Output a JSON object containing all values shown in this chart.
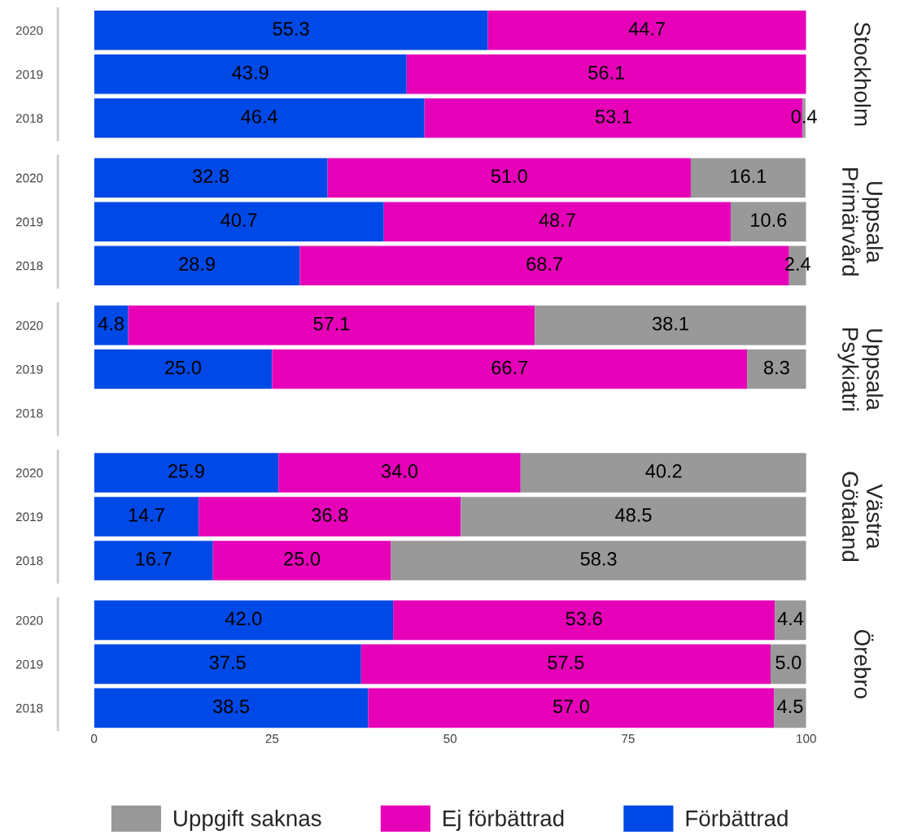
{
  "chart_data": [
    {
      "type": "bar",
      "orientation": "horizontal",
      "stacked": true,
      "ylabel": "Stockholm",
      "categories": [
        "2020",
        "2019",
        "2018"
      ],
      "xlim": [
        0,
        100
      ],
      "xticks": [
        0,
        25,
        50,
        75,
        100
      ],
      "tick_labels": "y",
      "grid": false,
      "series": [
        {
          "color": "#0049e6",
          "values": [
            55.3,
            43.9,
            46.4
          ],
          "value_labels": [
            "55.3",
            "43.9",
            "46.4"
          ]
        },
        {
          "color": "#e600b8",
          "values": [
            44.7,
            56.1,
            53.1
          ],
          "value_labels": [
            "44.7",
            "56.1",
            "53.1"
          ]
        },
        {
          "color": "#999999",
          "values": [
            null,
            null,
            0.4
          ],
          "value_labels": [
            null,
            null,
            "0.4"
          ]
        }
      ]
    },
    {
      "type": "bar",
      "orientation": "horizontal",
      "stacked": true,
      "ylabel": "Uppsala Primärvård",
      "categories": [
        "2020",
        "2019",
        "2018"
      ],
      "xlim": [
        0,
        100
      ],
      "xticks": [
        0,
        25,
        50,
        75,
        100
      ],
      "tick_labels": "y",
      "grid": false,
      "series": [
        {
          "color": "#0049e6",
          "values": [
            32.8,
            40.7,
            28.9
          ],
          "value_labels": [
            "32.8",
            "40.7",
            "28.9"
          ]
        },
        {
          "color": "#e600b8",
          "values": [
            51.0,
            48.7,
            68.7
          ],
          "value_labels": [
            "51.0",
            "48.7",
            "68.7"
          ]
        },
        {
          "color": "#999999",
          "values": [
            16.1,
            10.6,
            2.4
          ],
          "value_labels": [
            "16.1",
            "10.6",
            "2.4"
          ]
        }
      ]
    },
    {
      "type": "bar",
      "orientation": "horizontal",
      "stacked": true,
      "ylabel": "Uppsala Psykiatri",
      "categories": [
        "2020",
        "2019",
        "2018"
      ],
      "xlim": [
        0,
        100
      ],
      "xticks": [
        0,
        25,
        50,
        75,
        100
      ],
      "tick_labels": "y",
      "grid": false,
      "series": [
        {
          "color": "#0049e6",
          "values": [
            4.8,
            25.0,
            null
          ],
          "value_labels": [
            "4.8",
            "25.0",
            null
          ]
        },
        {
          "color": "#e600b8",
          "values": [
            57.1,
            66.7,
            null
          ],
          "value_labels": [
            "57.1",
            "66.7",
            null
          ]
        },
        {
          "color": "#999999",
          "values": [
            38.1,
            8.3,
            null
          ],
          "value_labels": [
            "38.1",
            "8.3",
            null
          ]
        }
      ]
    },
    {
      "type": "bar",
      "orientation": "horizontal",
      "stacked": true,
      "ylabel": "Västra Götaland",
      "categories": [
        "2020",
        "2019",
        "2018"
      ],
      "xlim": [
        0,
        100
      ],
      "xticks": [
        0,
        25,
        50,
        75,
        100
      ],
      "tick_labels": "y",
      "grid": false,
      "series": [
        {
          "color": "#0049e6",
          "values": [
            25.9,
            14.7,
            16.7
          ],
          "value_labels": [
            "25.9",
            "14.7",
            "16.7"
          ]
        },
        {
          "color": "#e600b8",
          "values": [
            34.0,
            36.8,
            25.0
          ],
          "value_labels": [
            "34.0",
            "36.8",
            "25.0"
          ]
        },
        {
          "color": "#999999",
          "values": [
            40.2,
            48.5,
            58.3
          ],
          "value_labels": [
            "40.2",
            "48.5",
            "58.3"
          ]
        }
      ]
    },
    {
      "type": "bar",
      "orientation": "horizontal",
      "stacked": true,
      "ylabel": "Örebro",
      "categories": [
        "2020",
        "2019",
        "2018"
      ],
      "xlim": [
        0,
        100
      ],
      "xticks": [
        0,
        25,
        50,
        75,
        100
      ],
      "grid": false,
      "legend": "bottom",
      "series": [
        {
          "name": "Förbättrad",
          "color": "#0049e6",
          "values": [
            42.0,
            37.5,
            38.5
          ],
          "value_labels": [
            "42.0",
            "37.5",
            "38.5"
          ]
        },
        {
          "name": "Ej förbättrad",
          "color": "#e600b8",
          "values": [
            53.6,
            57.5,
            57.0
          ],
          "value_labels": [
            "53.6",
            "57.5",
            "57.0"
          ]
        },
        {
          "name": "Uppgift saknas",
          "color": "#999999",
          "values": [
            4.4,
            5.0,
            4.5
          ],
          "value_labels": [
            "4.4",
            "5.0",
            "4.5"
          ]
        }
      ]
    }
  ]
}
